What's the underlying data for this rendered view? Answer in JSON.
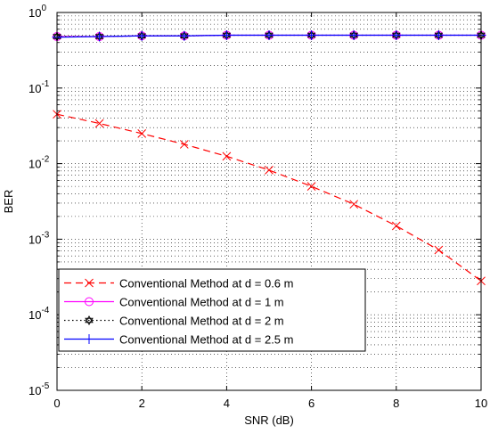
{
  "chart_data": {
    "type": "line",
    "xlabel": "SNR (dB)",
    "ylabel": "BER",
    "x_scale": "linear",
    "y_scale": "log",
    "xlim": [
      0,
      10
    ],
    "ylim": [
      1e-05,
      1
    ],
    "x_ticks": [
      0,
      2,
      4,
      6,
      8,
      10
    ],
    "y_ticks": [
      {
        "mantissa": "10",
        "exponent": "0"
      },
      {
        "mantissa": "10",
        "exponent": "-1"
      },
      {
        "mantissa": "10",
        "exponent": "-2"
      },
      {
        "mantissa": "10",
        "exponent": "-3"
      },
      {
        "mantissa": "10",
        "exponent": "-4"
      },
      {
        "mantissa": "10",
        "exponent": "-5"
      }
    ],
    "grid": true,
    "legend_position": "bottom-left",
    "x": [
      0,
      1,
      2,
      3,
      4,
      5,
      6,
      7,
      8,
      9,
      10
    ],
    "series": [
      {
        "name": "Conventional Method at d = 0.6 m",
        "color": "#ff0000",
        "line_style": "dashed",
        "marker": "x",
        "values": [
          0.045,
          0.034,
          0.025,
          0.018,
          0.0125,
          0.0082,
          0.005,
          0.0029,
          0.0015,
          0.00072,
          0.00028
        ]
      },
      {
        "name": "Conventional Method at d = 1 m",
        "color": "#ff00ff",
        "line_style": "solid",
        "marker": "circle",
        "values": [
          0.48,
          0.48,
          0.49,
          0.49,
          0.5,
          0.5,
          0.5,
          0.5,
          0.5,
          0.5,
          0.5
        ]
      },
      {
        "name": "Conventional Method at d = 2 m",
        "color": "#000000",
        "line_style": "dotted",
        "marker": "hexagram",
        "values": [
          0.48,
          0.48,
          0.49,
          0.49,
          0.5,
          0.5,
          0.5,
          0.5,
          0.5,
          0.5,
          0.5
        ]
      },
      {
        "name": "Conventional Method at d = 2.5 m",
        "color": "#0000ff",
        "line_style": "solid",
        "marker": "plus",
        "values": [
          0.47,
          0.48,
          0.49,
          0.49,
          0.5,
          0.5,
          0.5,
          0.5,
          0.5,
          0.5,
          0.5
        ]
      }
    ]
  }
}
